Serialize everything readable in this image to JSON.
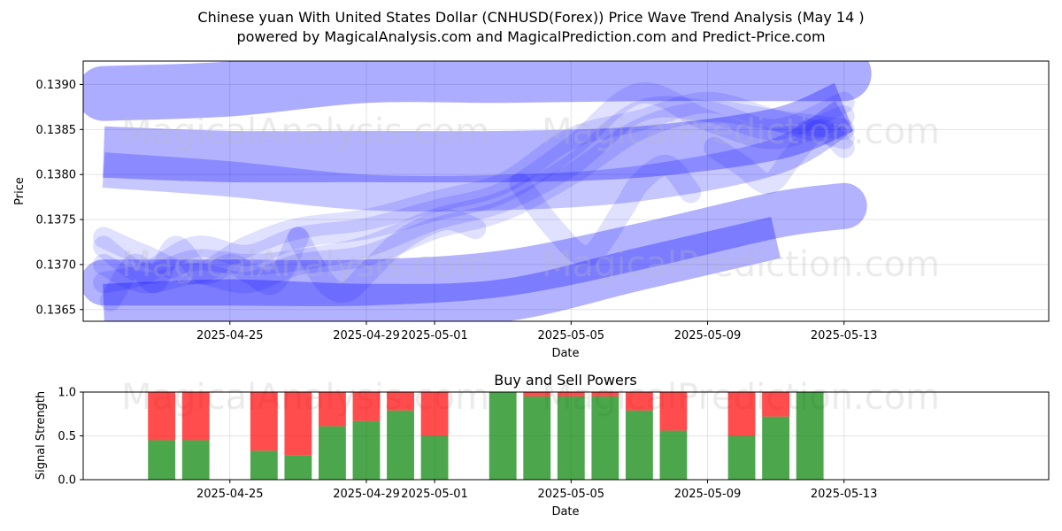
{
  "title": "Chinese yuan With United States Dollar (CNHUSD(Forex)) Price Wave Trend Analysis (May 14 )",
  "subtitle": "powered by MagicalAnalysis.com and MagicalPrediction.com and Predict-Price.com",
  "watermarks": [
    "MagicalAnalysis.com",
    "MagicalPrediction.com"
  ],
  "colors": {
    "band": "#0000ff",
    "buy": "#008000",
    "sell": "#ff0000"
  },
  "chart_data": [
    {
      "type": "line",
      "name": "price-wave-trend",
      "xlabel": "Date",
      "ylabel": "Price",
      "xlim": [
        -3.3,
        25.0
      ],
      "ylim": [
        0.13637,
        0.13926
      ],
      "x_ticks": [
        {
          "x": 1,
          "label": "2025-04-25"
        },
        {
          "x": 5,
          "label": "2025-04-29"
        },
        {
          "x": 7,
          "label": "2025-05-01"
        },
        {
          "x": 11,
          "label": "2025-05-05"
        },
        {
          "x": 15,
          "label": "2025-05-09"
        },
        {
          "x": 19,
          "label": "2025-05-13"
        }
      ],
      "y_ticks": [
        {
          "y": 0.1365,
          "label": "0.1365"
        },
        {
          "y": 0.137,
          "label": "0.1370"
        },
        {
          "y": 0.1375,
          "label": "0.1375"
        },
        {
          "y": 0.138,
          "label": "0.1380"
        },
        {
          "y": 0.1385,
          "label": "0.1385"
        },
        {
          "y": 0.139,
          "label": "0.1390"
        }
      ],
      "grid": true,
      "series": [
        {
          "name": "wave-upper",
          "x": [
            -2.7,
            1,
            5,
            9,
            13,
            17,
            19
          ],
          "values": [
            0.1389,
            0.13895,
            0.1391,
            0.1391,
            0.13912,
            0.13912,
            0.13912
          ]
        },
        {
          "name": "wave-high",
          "x": [
            -2.7,
            1,
            5,
            9,
            13,
            17,
            19
          ],
          "values": [
            0.13825,
            0.1382,
            0.1382,
            0.1382,
            0.13825,
            0.13845,
            0.13875
          ]
        },
        {
          "name": "wave-mid",
          "x": [
            -2.7,
            1,
            5,
            9,
            13,
            17,
            19
          ],
          "values": [
            0.13805,
            0.13795,
            0.1378,
            0.1378,
            0.1379,
            0.1382,
            0.13865
          ]
        },
        {
          "name": "wave-low",
          "x": [
            -2.7,
            1,
            5,
            9,
            13,
            17,
            19
          ],
          "values": [
            0.1368,
            0.1368,
            0.1368,
            0.1369,
            0.1372,
            0.13755,
            0.13765
          ]
        },
        {
          "name": "wave-bottom",
          "x": [
            -2.7,
            1,
            5,
            9,
            13,
            17
          ],
          "values": [
            0.13655,
            0.1366,
            0.13655,
            0.1366,
            0.13695,
            0.1373
          ]
        },
        {
          "name": "path-a",
          "x": [
            -2.7,
            -1.5,
            0,
            1.5,
            3,
            5,
            7,
            9,
            11,
            13,
            15,
            17,
            19
          ],
          "values": [
            0.1372,
            0.1369,
            0.13705,
            0.137,
            0.13705,
            0.1372,
            0.1375,
            0.1377,
            0.1381,
            0.1387,
            0.1387,
            0.1385,
            0.1388
          ]
        },
        {
          "name": "path-b",
          "x": [
            -2.7,
            -1.5,
            0,
            1.5,
            3,
            5,
            7,
            9,
            11,
            13,
            15,
            17,
            19
          ],
          "values": [
            0.1368,
            0.1369,
            0.1372,
            0.1371,
            0.1373,
            0.1374,
            0.1376,
            0.1378,
            0.1383,
            0.1389,
            0.1386,
            0.1384,
            0.13865
          ]
        },
        {
          "name": "path-c",
          "x": [
            -2.7,
            -1.5,
            0,
            1.5,
            3,
            5,
            7,
            9,
            11,
            13,
            15,
            17,
            19
          ],
          "values": [
            0.1373,
            0.1371,
            0.1369,
            0.1372,
            0.1374,
            0.1375,
            0.1377,
            0.1379,
            0.1384,
            0.1386,
            0.1388,
            0.1386,
            0.1384
          ]
        },
        {
          "name": "path-d",
          "x": [
            -2.7,
            -1.5,
            0,
            1.5,
            3,
            5,
            7,
            9,
            11,
            13,
            15,
            17,
            19
          ],
          "values": [
            0.137,
            0.1368,
            0.1369,
            0.1368,
            0.137,
            0.1371,
            0.1374,
            0.1376,
            0.138,
            0.1385,
            0.1387,
            0.1386,
            0.1385
          ]
        },
        {
          "name": "zigzag-a",
          "x": [
            -2.5,
            -1.8,
            -1.2,
            -0.6,
            0.2,
            1.0,
            1.6,
            2.3,
            3.0
          ],
          "values": [
            0.1366,
            0.137,
            0.1368,
            0.1372,
            0.1369,
            0.137,
            0.1369,
            0.1368,
            0.1373
          ]
        },
        {
          "name": "zigzag-b",
          "x": [
            3.0,
            3.8,
            4.4,
            5.0,
            5.8,
            6.6,
            7.4,
            8.2
          ],
          "values": [
            0.1373,
            0.1368,
            0.1367,
            0.1369,
            0.1372,
            0.1374,
            0.1375,
            0.1374
          ]
        },
        {
          "name": "zigzag-c",
          "x": [
            9.5,
            10.5,
            11.5,
            12.5,
            13.0,
            13.8,
            14.5
          ],
          "values": [
            0.1379,
            0.1374,
            0.1371,
            0.1376,
            0.1379,
            0.1381,
            0.1378
          ]
        },
        {
          "name": "zigzag-d",
          "x": [
            15.2,
            16.0,
            16.8,
            17.5,
            18.3,
            19.0
          ],
          "values": [
            0.1383,
            0.1381,
            0.1379,
            0.1382,
            0.1385,
            0.1383
          ]
        }
      ]
    },
    {
      "type": "bar",
      "name": "buy-sell-powers",
      "title": "Buy and Sell Powers",
      "xlabel": "Date",
      "ylabel": "Signal Strength",
      "ylim": [
        0.0,
        1.0
      ],
      "xlim": [
        -3.3,
        25.0
      ],
      "y_ticks": [
        {
          "y": 0.0,
          "label": "0.0"
        },
        {
          "y": 0.5,
          "label": "0.5"
        },
        {
          "y": 1.0,
          "label": "1.0"
        }
      ],
      "x_ticks": [
        {
          "x": 1,
          "label": "2025-04-25"
        },
        {
          "x": 5,
          "label": "2025-04-29"
        },
        {
          "x": 7,
          "label": "2025-05-01"
        },
        {
          "x": 11,
          "label": "2025-05-05"
        },
        {
          "x": 15,
          "label": "2025-05-09"
        },
        {
          "x": 19,
          "label": "2025-05-13"
        }
      ],
      "grid": true,
      "series": [
        {
          "name": "Buy",
          "x": [
            -1,
            0,
            2,
            3,
            4,
            5,
            6,
            7,
            9,
            10,
            11,
            12,
            13,
            14,
            16,
            17,
            18
          ],
          "values": [
            0.45,
            0.45,
            0.33,
            0.28,
            0.61,
            0.67,
            0.79,
            0.5,
            1.0,
            0.95,
            0.95,
            0.95,
            0.79,
            0.56,
            0.5,
            0.72,
            1.0
          ]
        },
        {
          "name": "Sell",
          "x": [
            -1,
            0,
            2,
            3,
            4,
            5,
            6,
            7,
            9,
            10,
            11,
            12,
            13,
            14,
            16,
            17,
            18
          ],
          "values": [
            0.55,
            0.55,
            0.67,
            0.72,
            0.39,
            0.33,
            0.21,
            0.5,
            0.0,
            0.05,
            0.05,
            0.05,
            0.21,
            0.44,
            0.5,
            0.28,
            0.0
          ]
        }
      ]
    }
  ]
}
